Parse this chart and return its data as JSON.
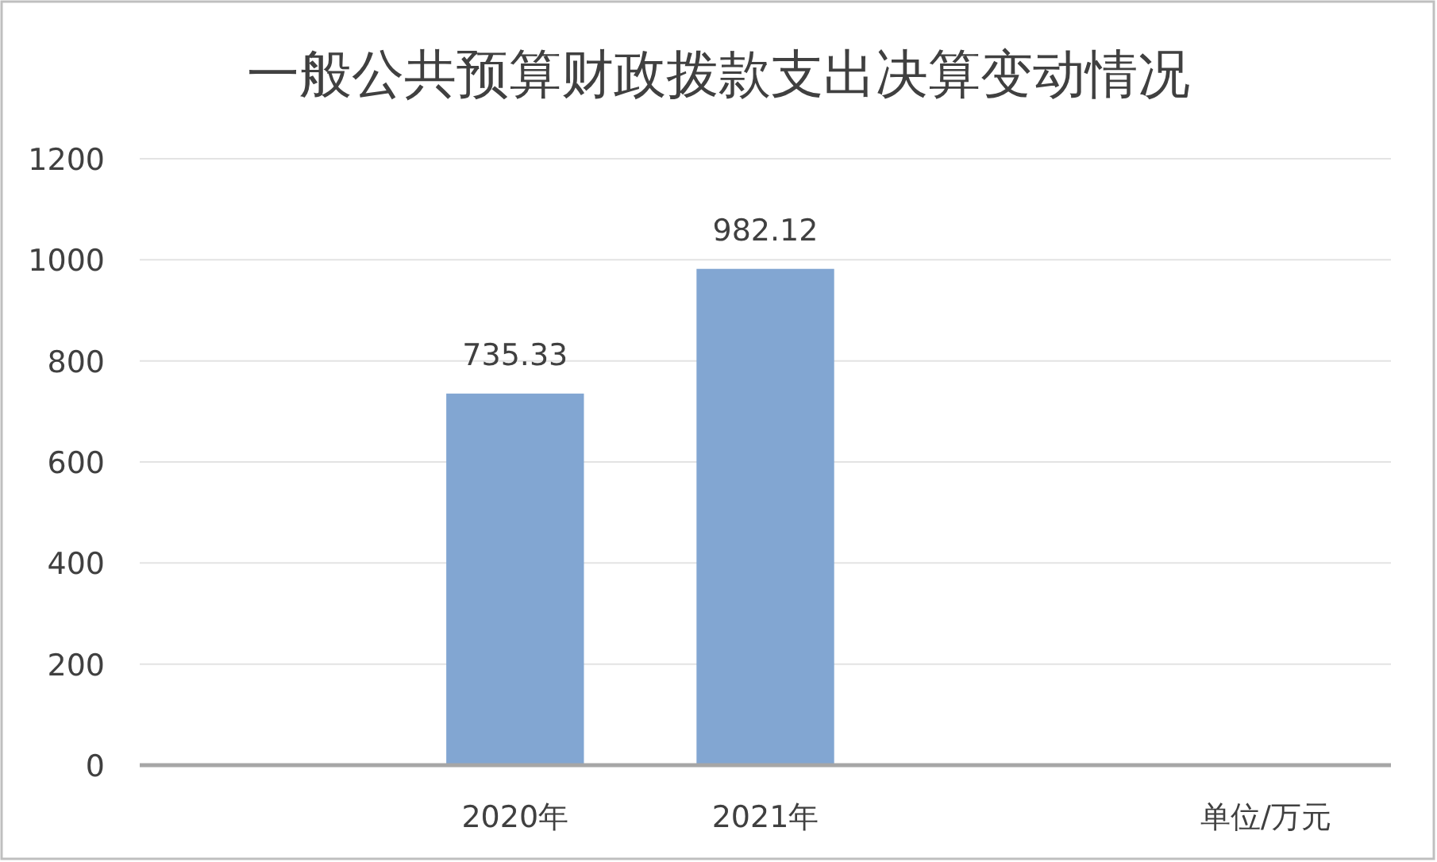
{
  "chart_data": {
    "type": "bar",
    "title": "一般公共预算财政拨款支出决算变动情况",
    "categories": [
      null,
      "2020年",
      "2021年",
      null,
      "单位/万元"
    ],
    "values": [
      null,
      735.33,
      982.12,
      null,
      null
    ],
    "color": "#82a6d2",
    "data_labels": true,
    "ylim": [
      0,
      1200
    ],
    "yticks": [
      0,
      200,
      400,
      600,
      800,
      1000,
      1200
    ],
    "grid": "y"
  }
}
